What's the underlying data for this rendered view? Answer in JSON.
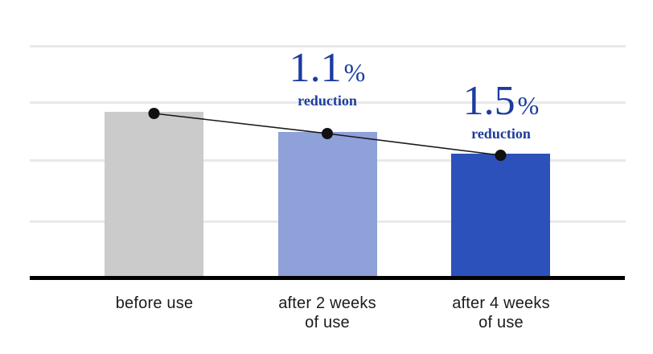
{
  "page": {
    "background": "#ffffff"
  },
  "chart_data": {
    "type": "bar",
    "title": "",
    "xlabel": "",
    "ylabel": "",
    "legend": "none",
    "grid": "horizontal gridlines, no y-axis tick labels",
    "gridline_count": 4,
    "categories": [
      "before use",
      "after 2 weeks of use",
      "after 4 weeks of use"
    ],
    "category_lines": [
      [
        "before use"
      ],
      [
        "after 2 weeks",
        "of use"
      ],
      [
        "after 4 weeks",
        "of use"
      ]
    ],
    "values": [
      100,
      88,
      75
    ],
    "value_scale": "relative bar height, first bar = 100 (y-axis unlabeled)",
    "ylim": [
      0,
      139
    ],
    "bar_colors": [
      "#cbcbcb",
      "#8fa1d9",
      "#2c51bb"
    ],
    "trend_line": {
      "description": "thin black line connecting dots at each bar top",
      "color": "#1a1a1a",
      "dot_color": "#111111"
    },
    "annotations": [
      {
        "bar": "after 2 weeks of use",
        "value": "1.1",
        "unit": "%",
        "caption": "reduction",
        "color": "#1e3c9e"
      },
      {
        "bar": "after 4 weeks of use",
        "value": "1.5",
        "unit": "%",
        "caption": "reduction",
        "color": "#1e3c9e"
      }
    ],
    "colors": {
      "gridline": "#e9e9e9",
      "axis": "#000000",
      "category_label": "#1b1b1b"
    }
  }
}
